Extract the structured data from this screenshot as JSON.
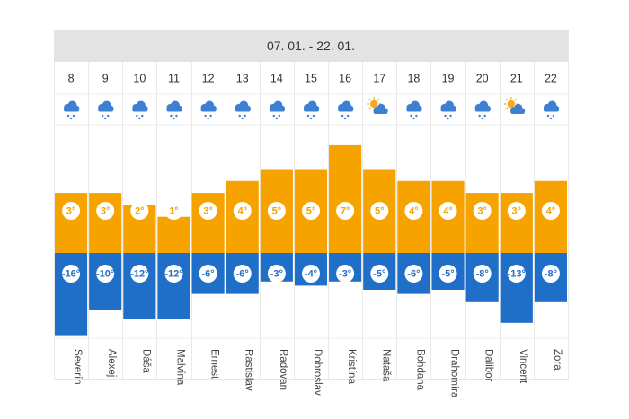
{
  "header": {
    "date_range": "07. 01. - 22. 01."
  },
  "colors": {
    "max_bar": "#f6a300",
    "min_bar": "#1f6fc8",
    "header_bg": "#e3e3e3",
    "icon": "#3d7fd0",
    "sun": "#f3a920"
  },
  "chart_data": {
    "type": "bar",
    "title": "07. 01. - 22. 01.",
    "categories": [
      "8",
      "9",
      "10",
      "11",
      "12",
      "13",
      "14",
      "15",
      "16",
      "17",
      "18",
      "19",
      "20",
      "21",
      "22"
    ],
    "series": [
      {
        "values": [
          3,
          3,
          2,
          1,
          3,
          4,
          5,
          5,
          7,
          5,
          4,
          4,
          3,
          3,
          4
        ]
      },
      {
        "values": [
          -16,
          -10,
          -12,
          -12,
          -6,
          -6,
          -3,
          -4,
          -3,
          -5,
          -6,
          -5,
          -8,
          -13,
          -8
        ]
      }
    ],
    "max_labels": [
      "3°",
      "3°",
      "2°",
      "1°",
      "3°",
      "4°",
      "5°",
      "5°",
      "7°",
      "5°",
      "4°",
      "4°",
      "3°",
      "3°",
      "4°"
    ],
    "min_labels": [
      "-16°",
      "-10°",
      "-12°",
      "-12°",
      "-6°",
      "-6°",
      "-3°",
      "-4°",
      "-3°",
      "-5°",
      "-6°",
      "-5°",
      "-8°",
      "-13°",
      "-8°"
    ],
    "icons": [
      "snow-cloud-icon",
      "snow-cloud-icon",
      "snow-cloud-icon",
      "snow-cloud-icon",
      "snow-cloud-icon",
      "snow-cloud-icon",
      "snow-cloud-icon",
      "snow-cloud-icon",
      "snow-cloud-icon",
      "sun-cloud-icon",
      "snow-cloud-icon",
      "snow-cloud-icon",
      "snow-cloud-icon",
      "sun-cloud-icon",
      "snow-cloud-icon"
    ],
    "names": [
      "Severín",
      "Alexej",
      "Dáša",
      "Malvína",
      "Ernest",
      "Rastislav",
      "Radovan",
      "Dobroslav",
      "Kristína",
      "Nataša",
      "Bohdana",
      "Drahomíra",
      "Dalibor",
      "Vincent",
      "Zora"
    ]
  }
}
